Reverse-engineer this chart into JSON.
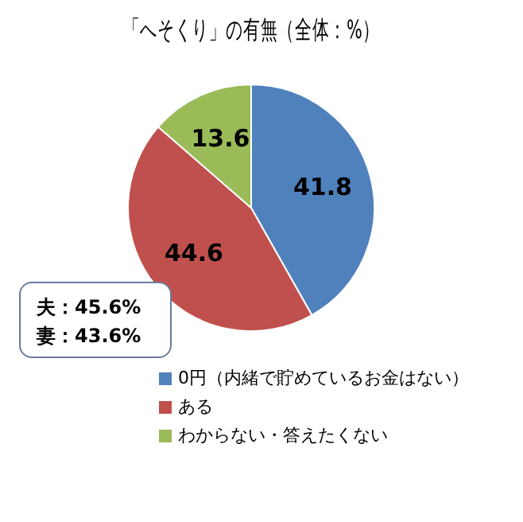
{
  "chart_data": {
    "type": "pie",
    "title": "「へそくり」の有無（全体：%）",
    "categories": [
      "0円（内緒で貯めているお金はない）",
      "ある",
      "わからない・答えたくない"
    ],
    "values": [
      41.8,
      44.6,
      13.6
    ],
    "colors": [
      "#4f81bd",
      "#c0504d",
      "#9bbb59"
    ],
    "data_labels": true,
    "legend": "bottom",
    "annotations": [
      "夫：45.6%",
      "妻：43.6%"
    ]
  }
}
